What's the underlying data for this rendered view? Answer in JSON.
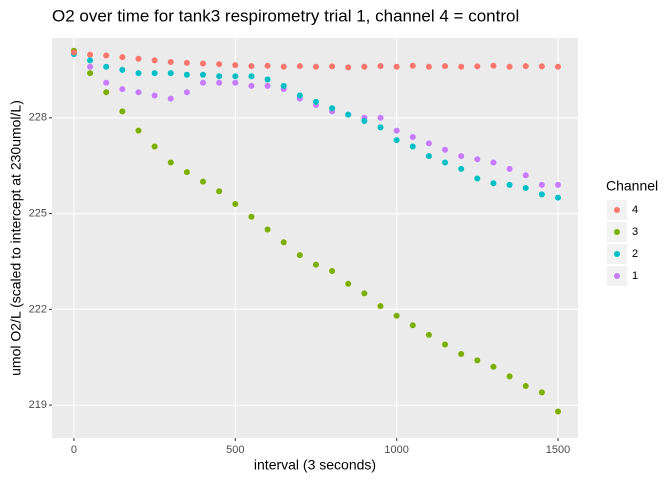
{
  "chart_data": {
    "type": "scatter",
    "title": "O2 over time for tank3 respirometry trial 1, channel 4 = control",
    "x_label": "interval (3 seconds)",
    "y_label": "umol O2/L (scaled to intercept at 230umol/L)",
    "legend_title": "Channel",
    "legend_position": "right",
    "grid": true,
    "xlim": [
      -68,
      1562
    ],
    "ylim": [
      217.97,
      230.5
    ],
    "xticks": [
      0,
      500,
      1000,
      1500
    ],
    "yticks": [
      219,
      222,
      225,
      228
    ],
    "x": [
      0,
      50,
      100,
      150,
      200,
      250,
      300,
      350,
      400,
      450,
      500,
      550,
      600,
      650,
      700,
      750,
      800,
      850,
      900,
      950,
      1000,
      1050,
      1100,
      1150,
      1200,
      1250,
      1300,
      1350,
      1400,
      1450,
      1500
    ],
    "series": [
      {
        "name": "4",
        "color": "#F8766D",
        "values": [
          230.05,
          229.98,
          229.95,
          229.9,
          229.85,
          229.8,
          229.75,
          229.72,
          229.7,
          229.68,
          229.65,
          229.62,
          229.63,
          229.6,
          229.62,
          229.6,
          229.61,
          229.58,
          229.6,
          229.62,
          229.6,
          229.63,
          229.6,
          229.62,
          229.6,
          229.61,
          229.63,
          229.6,
          229.62,
          229.61,
          229.6
        ]
      },
      {
        "name": "3",
        "color": "#7CAE00",
        "values": [
          230.1,
          229.4,
          228.8,
          228.2,
          227.6,
          227.1,
          226.6,
          226.3,
          226.0,
          225.7,
          225.3,
          224.9,
          224.5,
          224.1,
          223.7,
          223.4,
          223.2,
          222.8,
          222.5,
          222.1,
          221.8,
          221.5,
          221.2,
          220.9,
          220.6,
          220.4,
          220.2,
          219.9,
          219.6,
          219.4,
          218.8
        ]
      },
      {
        "name": "2",
        "color": "#00BFC4",
        "values": [
          230.0,
          229.8,
          229.6,
          229.5,
          229.4,
          229.4,
          229.4,
          229.35,
          229.35,
          229.3,
          229.3,
          229.3,
          229.2,
          229.0,
          228.7,
          228.5,
          228.3,
          228.1,
          227.9,
          227.7,
          227.3,
          227.1,
          226.8,
          226.6,
          226.4,
          226.1,
          225.95,
          225.9,
          225.8,
          225.6,
          225.5
        ]
      },
      {
        "name": "1",
        "color": "#C77CFF",
        "values": [
          230.0,
          229.6,
          229.1,
          228.9,
          228.8,
          228.7,
          228.6,
          228.8,
          229.1,
          229.1,
          229.1,
          229.0,
          229.0,
          228.9,
          228.6,
          228.4,
          228.2,
          228.1,
          228.0,
          228.0,
          227.6,
          227.4,
          227.2,
          227.0,
          226.8,
          226.7,
          226.6,
          226.4,
          226.2,
          225.9,
          225.9
        ]
      }
    ]
  }
}
